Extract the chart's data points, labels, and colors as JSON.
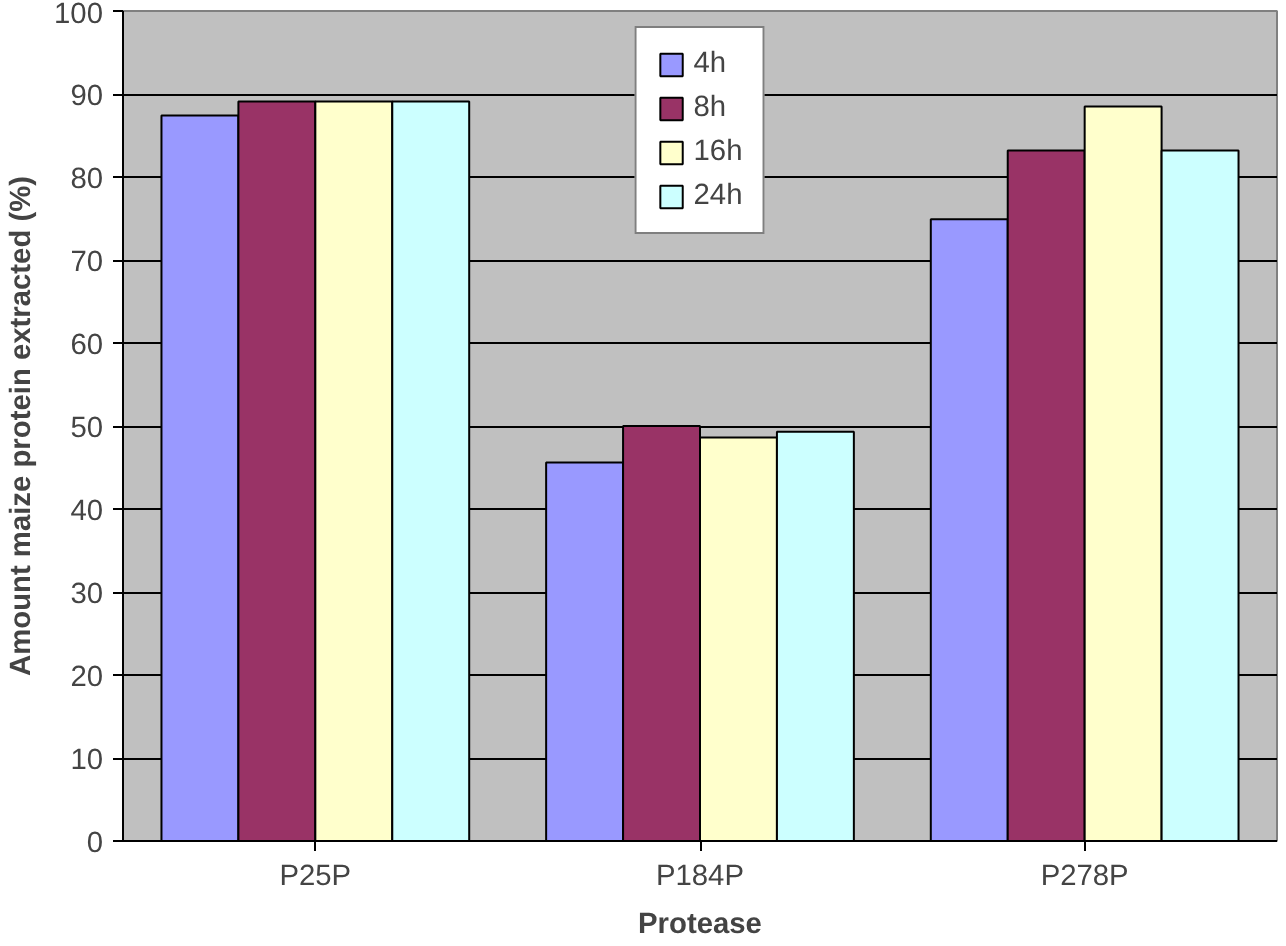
{
  "chart_data": {
    "type": "bar",
    "xlabel": "Protease",
    "ylabel": "Amount maize protein extracted (%)",
    "categories": [
      "P25P",
      "P184P",
      "P278P"
    ],
    "series": [
      {
        "name": "4h",
        "color": "#9999ff",
        "values": [
          87.4,
          45.6,
          74.9
        ]
      },
      {
        "name": "8h",
        "color": "#993366",
        "values": [
          89.1,
          50.0,
          83.2
        ]
      },
      {
        "name": "16h",
        "color": "#ffffcc",
        "values": [
          89.1,
          48.6,
          88.5
        ]
      },
      {
        "name": "24h",
        "color": "#ccffff",
        "values": [
          89.1,
          49.3,
          83.2
        ]
      }
    ],
    "ylim": [
      0,
      100
    ],
    "yticks": [
      0,
      10,
      20,
      30,
      40,
      50,
      60,
      70,
      80,
      90,
      100
    ],
    "grid": "y",
    "legend": "top"
  }
}
